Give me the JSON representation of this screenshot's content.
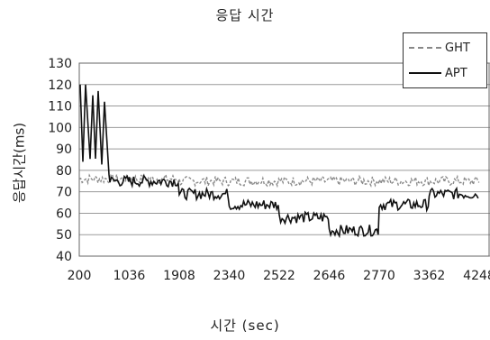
{
  "chart_data": {
    "type": "line",
    "title": "응답 시간",
    "xlabel": "시간 (sec)",
    "ylabel": "응답시간(ms)",
    "ylim": [
      40,
      130
    ],
    "yticks": [
      40,
      50,
      60,
      70,
      80,
      90,
      100,
      110,
      120,
      130
    ],
    "categories": [
      "200",
      "1036",
      "1908",
      "2340",
      "2522",
      "2646",
      "2770",
      "3362",
      "4248"
    ],
    "grid": true,
    "legend_position": "top-right",
    "series": [
      {
        "name": "GHT",
        "style": "dashed",
        "color": "#8a8a8a",
        "segments": [
          {
            "x_range": [
              200,
              1908
            ],
            "value": 76
          },
          {
            "x_range": [
              1908,
              4248
            ],
            "value": 75
          }
        ]
      },
      {
        "name": "APT",
        "style": "solid",
        "color": "#111111",
        "segments": [
          {
            "x_range": [
              200,
              1036
            ],
            "value": 75,
            "note": "initial spikes up to ~120"
          },
          {
            "x_range": [
              1036,
              1908
            ],
            "value": 75
          },
          {
            "x_range": [
              1908,
              2340
            ],
            "value": 69
          },
          {
            "x_range": [
              2340,
              2522
            ],
            "value": 64
          },
          {
            "x_range": [
              2522,
              2646
            ],
            "value": 58
          },
          {
            "x_range": [
              2646,
              2770
            ],
            "value": 52
          },
          {
            "x_range": [
              2770,
              3362
            ],
            "value": 64
          },
          {
            "x_range": [
              3362,
              4248
            ],
            "value": 69
          }
        ],
        "initial_peaks": [
          120,
          115,
          117,
          112
        ]
      }
    ]
  }
}
